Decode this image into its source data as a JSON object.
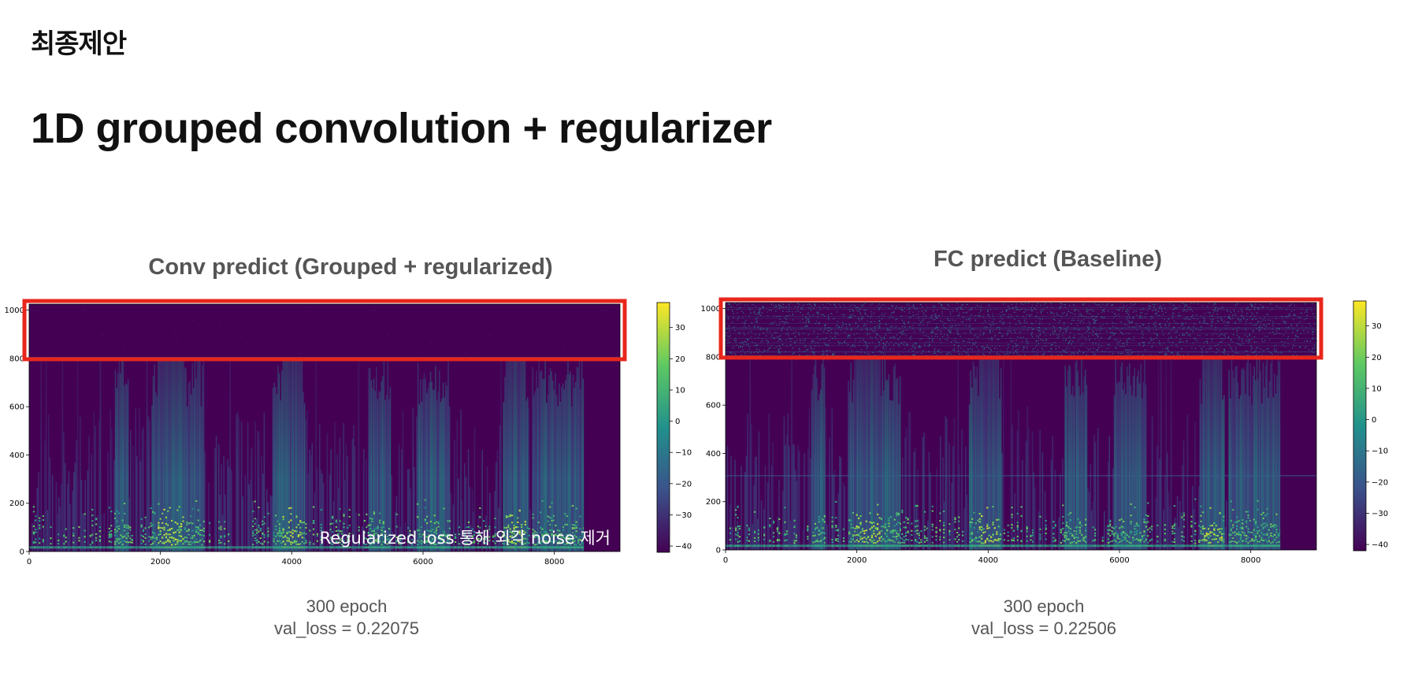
{
  "header": {
    "section_title": "최종제안",
    "slide_title": "1D grouped convolution + regularizer"
  },
  "chart_data": [
    {
      "type": "heatmap",
      "title": "Conv predict (Grouped + regularized)",
      "x_ticks": [
        "0",
        "2000",
        "4000",
        "6000",
        "8000"
      ],
      "y_ticks": [
        "0",
        "200",
        "400",
        "600",
        "800",
        "1000"
      ],
      "xlim": [
        0,
        9000
      ],
      "ylim": [
        0,
        1025
      ],
      "colorbar": {
        "ticks": [
          "30",
          "20",
          "10",
          "0",
          "−10",
          "−20",
          "−30",
          "−40"
        ],
        "range": [
          -42,
          38
        ],
        "colormap": "viridis"
      },
      "highlight_box": {
        "y_range": [
          800,
          1025
        ],
        "color": "#e8261b"
      },
      "annotation": "Regularized loss 통해 외각 noise 제거",
      "caption": {
        "line1": "300 epoch",
        "line2": "val_loss = 0.22075"
      },
      "val_loss": 0.22075,
      "epochs": 300,
      "active_region_x": [
        0,
        8450
      ],
      "loud_segments_x": [
        [
          1300,
          1500
        ],
        [
          1850,
          2650
        ],
        [
          3700,
          4200
        ],
        [
          5150,
          5500
        ],
        [
          5900,
          6400
        ],
        [
          7200,
          7600
        ],
        [
          7650,
          8450
        ]
      ],
      "dense_segments_x": [
        [
          1950,
          2350
        ],
        [
          3850,
          4150
        ],
        [
          7250,
          7550
        ]
      ],
      "top_band_noise": "low",
      "reference_bin_at_800_noise": false
    },
    {
      "type": "heatmap",
      "title": "FC predict (Baseline)",
      "x_ticks": [
        "0",
        "2000",
        "4000",
        "6000",
        "8000"
      ],
      "y_ticks": [
        "0",
        "200",
        "400",
        "600",
        "800",
        "1000"
      ],
      "xlim": [
        0,
        9000
      ],
      "ylim": [
        0,
        1025
      ],
      "colorbar": {
        "ticks": [
          "30",
          "20",
          "10",
          "0",
          "−10",
          "−20",
          "−30",
          "−40"
        ],
        "range": [
          -42,
          38
        ],
        "colormap": "viridis"
      },
      "highlight_box": {
        "y_range": [
          800,
          1025
        ],
        "color": "#e8261b"
      },
      "caption": {
        "line1": "300 epoch",
        "line2": "val_loss = 0.22506"
      },
      "val_loss": 0.22506,
      "epochs": 300,
      "active_region_x": [
        0,
        8450
      ],
      "loud_segments_x": [
        [
          1300,
          1500
        ],
        [
          1850,
          2650
        ],
        [
          3700,
          4200
        ],
        [
          5150,
          5500
        ],
        [
          5900,
          6400
        ],
        [
          7200,
          7600
        ],
        [
          7650,
          8450
        ]
      ],
      "dense_segments_x": [
        [
          1950,
          2350
        ],
        [
          3850,
          4150
        ],
        [
          7250,
          7550
        ]
      ],
      "top_band_noise": "high",
      "reference_bin_at_800_noise": true
    }
  ]
}
